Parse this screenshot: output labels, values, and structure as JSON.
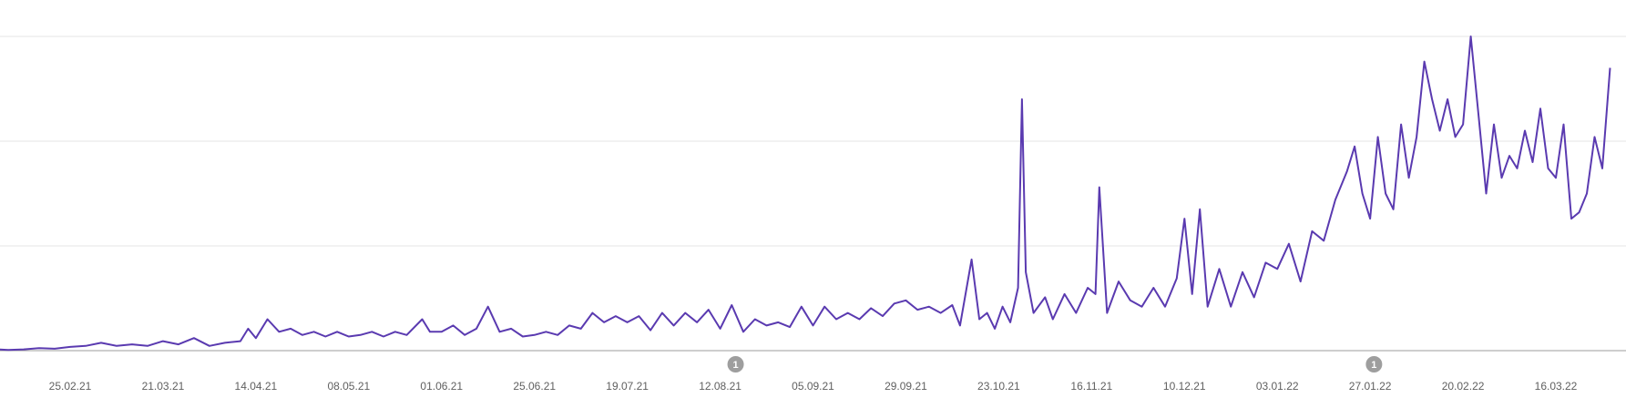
{
  "chart_data": {
    "type": "line",
    "title": "",
    "xlabel": "",
    "ylabel": "",
    "ylim": [
      0,
      100
    ],
    "grid": true,
    "x_tick_labels": [
      "25.02.21",
      "21.03.21",
      "14.04.21",
      "08.05.21",
      "01.06.21",
      "25.06.21",
      "19.07.21",
      "12.08.21",
      "05.09.21",
      "29.09.21",
      "23.10.21",
      "16.11.21",
      "10.12.21",
      "03.01.22",
      "27.01.22",
      "20.02.22",
      "16.03.22"
    ],
    "annotations": [
      {
        "label": "1",
        "date": "16.08.21"
      },
      {
        "label": "1",
        "date": "28.01.22"
      }
    ],
    "series": [
      {
        "color": "#5a3ab0",
        "points": [
          [
            "01.02.21",
            0.2
          ],
          [
            "05.02.21",
            0.5
          ],
          [
            "09.02.21",
            0.2
          ],
          [
            "13.02.21",
            0.4
          ],
          [
            "17.02.21",
            0.8
          ],
          [
            "21.02.21",
            0.6
          ],
          [
            "25.02.21",
            1.2
          ],
          [
            "01.03.21",
            1.5
          ],
          [
            "05.03.21",
            2.5
          ],
          [
            "09.03.21",
            1.5
          ],
          [
            "13.03.21",
            2
          ],
          [
            "17.03.21",
            1.5
          ],
          [
            "21.03.21",
            3
          ],
          [
            "25.03.21",
            2
          ],
          [
            "29.03.21",
            4
          ],
          [
            "02.04.21",
            1.5
          ],
          [
            "06.04.21",
            2.5
          ],
          [
            "10.04.21",
            3
          ],
          [
            "12.04.21",
            7
          ],
          [
            "14.04.21",
            4
          ],
          [
            "17.04.21",
            10
          ],
          [
            "20.04.21",
            6
          ],
          [
            "23.04.21",
            7
          ],
          [
            "26.04.21",
            5
          ],
          [
            "29.04.21",
            6
          ],
          [
            "02.05.21",
            4.5
          ],
          [
            "05.05.21",
            6
          ],
          [
            "08.05.21",
            4.5
          ],
          [
            "11.05.21",
            5
          ],
          [
            "14.05.21",
            6
          ],
          [
            "17.05.21",
            4.5
          ],
          [
            "20.05.21",
            6
          ],
          [
            "23.05.21",
            5
          ],
          [
            "27.05.21",
            10
          ],
          [
            "29.05.21",
            6
          ],
          [
            "01.06.21",
            6
          ],
          [
            "04.06.21",
            8
          ],
          [
            "07.06.21",
            5
          ],
          [
            "10.06.21",
            7
          ],
          [
            "13.06.21",
            14
          ],
          [
            "16.06.21",
            6
          ],
          [
            "19.06.21",
            7
          ],
          [
            "22.06.21",
            4.5
          ],
          [
            "25.06.21",
            5
          ],
          [
            "28.06.21",
            6
          ],
          [
            "01.07.21",
            5
          ],
          [
            "04.07.21",
            8
          ],
          [
            "07.07.21",
            7
          ],
          [
            "10.07.21",
            12
          ],
          [
            "13.07.21",
            9
          ],
          [
            "16.07.21",
            11
          ],
          [
            "19.07.21",
            9
          ],
          [
            "22.07.21",
            11
          ],
          [
            "25.07.21",
            6.5
          ],
          [
            "28.07.21",
            12
          ],
          [
            "31.07.21",
            8
          ],
          [
            "03.08.21",
            12
          ],
          [
            "06.08.21",
            9
          ],
          [
            "09.08.21",
            13
          ],
          [
            "12.08.21",
            7
          ],
          [
            "15.08.21",
            14.5
          ],
          [
            "18.08.21",
            6
          ],
          [
            "21.08.21",
            10
          ],
          [
            "24.08.21",
            8
          ],
          [
            "27.08.21",
            9
          ],
          [
            "30.08.21",
            7.5
          ],
          [
            "02.09.21",
            14
          ],
          [
            "05.09.21",
            8
          ],
          [
            "08.09.21",
            14
          ],
          [
            "11.09.21",
            10
          ],
          [
            "14.09.21",
            12
          ],
          [
            "17.09.21",
            10
          ],
          [
            "20.09.21",
            13.5
          ],
          [
            "23.09.21",
            11
          ],
          [
            "26.09.21",
            15
          ],
          [
            "29.09.21",
            16
          ],
          [
            "02.10.21",
            13
          ],
          [
            "05.10.21",
            14
          ],
          [
            "08.10.21",
            12
          ],
          [
            "11.10.21",
            14.5
          ],
          [
            "13.10.21",
            8
          ],
          [
            "16.10.21",
            29
          ],
          [
            "18.10.21",
            10
          ],
          [
            "20.10.21",
            12
          ],
          [
            "22.10.21",
            7
          ],
          [
            "24.10.21",
            14
          ],
          [
            "26.10.21",
            9
          ],
          [
            "28.10.21",
            20
          ],
          [
            "29.10.21",
            80
          ],
          [
            "30.10.21",
            25
          ],
          [
            "01.11.21",
            12
          ],
          [
            "04.11.21",
            17
          ],
          [
            "06.11.21",
            10
          ],
          [
            "09.11.21",
            18
          ],
          [
            "12.11.21",
            12
          ],
          [
            "15.11.21",
            20
          ],
          [
            "17.11.21",
            18
          ],
          [
            "18.11.21",
            52
          ],
          [
            "20.11.21",
            12
          ],
          [
            "23.11.21",
            22
          ],
          [
            "26.11.21",
            16
          ],
          [
            "29.11.21",
            14
          ],
          [
            "02.12.21",
            20
          ],
          [
            "05.12.21",
            14
          ],
          [
            "08.12.21",
            23
          ],
          [
            "10.12.21",
            42
          ],
          [
            "12.12.21",
            18
          ],
          [
            "14.12.21",
            45
          ],
          [
            "16.12.21",
            14
          ],
          [
            "19.12.21",
            26
          ],
          [
            "22.12.21",
            14
          ],
          [
            "25.12.21",
            25
          ],
          [
            "28.12.21",
            17
          ],
          [
            "31.12.21",
            28
          ],
          [
            "03.01.22",
            26
          ],
          [
            "06.01.22",
            34
          ],
          [
            "09.01.22",
            22
          ],
          [
            "12.01.22",
            38
          ],
          [
            "15.01.22",
            35
          ],
          [
            "18.01.22",
            48
          ],
          [
            "21.01.22",
            57
          ],
          [
            "23.01.22",
            65
          ],
          [
            "25.01.22",
            50
          ],
          [
            "27.01.22",
            42
          ],
          [
            "29.01.22",
            68
          ],
          [
            "31.01.22",
            50
          ],
          [
            "02.02.22",
            45
          ],
          [
            "04.02.22",
            72
          ],
          [
            "06.02.22",
            55
          ],
          [
            "08.02.22",
            68
          ],
          [
            "10.02.22",
            92
          ],
          [
            "12.02.22",
            80
          ],
          [
            "14.02.22",
            70
          ],
          [
            "16.02.22",
            80
          ],
          [
            "18.02.22",
            68
          ],
          [
            "20.02.22",
            72
          ],
          [
            "22.02.22",
            100
          ],
          [
            "24.02.22",
            75
          ],
          [
            "26.02.22",
            50
          ],
          [
            "28.02.22",
            72
          ],
          [
            "02.03.22",
            55
          ],
          [
            "04.03.22",
            62
          ],
          [
            "06.03.22",
            58
          ],
          [
            "08.03.22",
            70
          ],
          [
            "10.03.22",
            60
          ],
          [
            "12.03.22",
            77
          ],
          [
            "14.03.22",
            58
          ],
          [
            "16.03.22",
            55
          ],
          [
            "18.03.22",
            72
          ],
          [
            "20.03.22",
            42
          ],
          [
            "22.03.22",
            44
          ],
          [
            "24.03.22",
            50
          ],
          [
            "26.03.22",
            68
          ],
          [
            "28.03.22",
            58
          ],
          [
            "30.03.22",
            90
          ]
        ]
      }
    ]
  }
}
